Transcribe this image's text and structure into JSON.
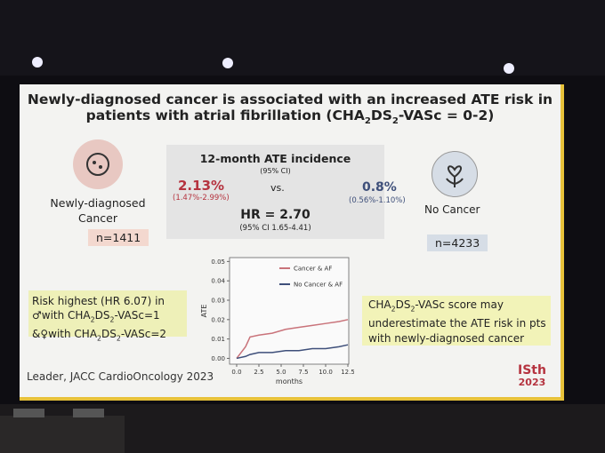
{
  "slide": {
    "title_line1": "Newly-diagnosed cancer is associated with an increased ATE risk in",
    "title_line2": [
      "patients with atrial fibrillation (CHA",
      "2",
      "DS",
      "2",
      "-VASc = 0-2)"
    ],
    "left": {
      "label": [
        "Newly-diagnosed",
        "Cancer"
      ],
      "n": "n=1411"
    },
    "right": {
      "label": "No Cancer",
      "n": "n=4233"
    },
    "incidence": {
      "heading": "12-month ATE incidence",
      "ci_label": "(95% CI)",
      "cancer_value": "2.13%",
      "cancer_ci": "(1.47%-2.99%)",
      "vs": "vs.",
      "nocancer_value": "0.8%",
      "nocancer_ci": "(0.56%-1.10%)",
      "hr": "HR = 2.70",
      "hr_ci": "(95% CI 1.65-4.41)"
    },
    "risk_note": {
      "line1": "Risk highest (HR 6.07) in",
      "line2": [
        "♂with CHA",
        "2",
        "DS",
        "2",
        "-VASc=1"
      ],
      "line3": [
        "&♀with CHA",
        "2",
        "DS",
        "2",
        "-VASc=2"
      ]
    },
    "score_note": {
      "line1": [
        "CHA",
        "2",
        "DS",
        "2",
        "-VASc score may"
      ],
      "line2": "underestimate the ATE risk in pts",
      "line3": "with newly-diagnosed cancer"
    },
    "citation": "Leader, JACC CardioOncology 2023",
    "logo": [
      "ISth",
      "2023"
    ]
  },
  "chart": {
    "type": "line",
    "xlabel": "months",
    "ylabel": "ATE",
    "x": [
      0,
      1,
      1.5,
      2.5,
      4,
      5.5,
      7,
      8.5,
      10,
      11.5,
      12.5
    ],
    "series": [
      {
        "name": "Cancer & AF",
        "color": "#c9737a",
        "values": [
          0,
          0.006,
          0.011,
          0.012,
          0.013,
          0.015,
          0.016,
          0.017,
          0.018,
          0.019,
          0.02
        ]
      },
      {
        "name": "No Cancer & AF",
        "color": "#3e4f7a",
        "values": [
          0,
          0.001,
          0.002,
          0.003,
          0.003,
          0.004,
          0.004,
          0.005,
          0.005,
          0.006,
          0.007
        ]
      }
    ],
    "xlim": [
      -0.8,
      12.6
    ],
    "ylim": [
      -0.003,
      0.052
    ],
    "xticks": [
      {
        "value": 0,
        "label": "0.0"
      },
      2.5,
      {
        "value": 5,
        "label": "5.0"
      },
      7.5,
      {
        "value": 10,
        "label": "10.0"
      },
      12.5
    ],
    "yticks": [
      {
        "value": 0,
        "label": "0.00"
      },
      {
        "value": 0.01,
        "label": "0.01"
      },
      {
        "value": 0.02,
        "label": "0.02"
      },
      {
        "value": 0.03,
        "label": "0.03"
      },
      {
        "value": 0.04,
        "label": "0.04"
      },
      {
        "value": 0.05,
        "label": "0.05"
      }
    ]
  }
}
